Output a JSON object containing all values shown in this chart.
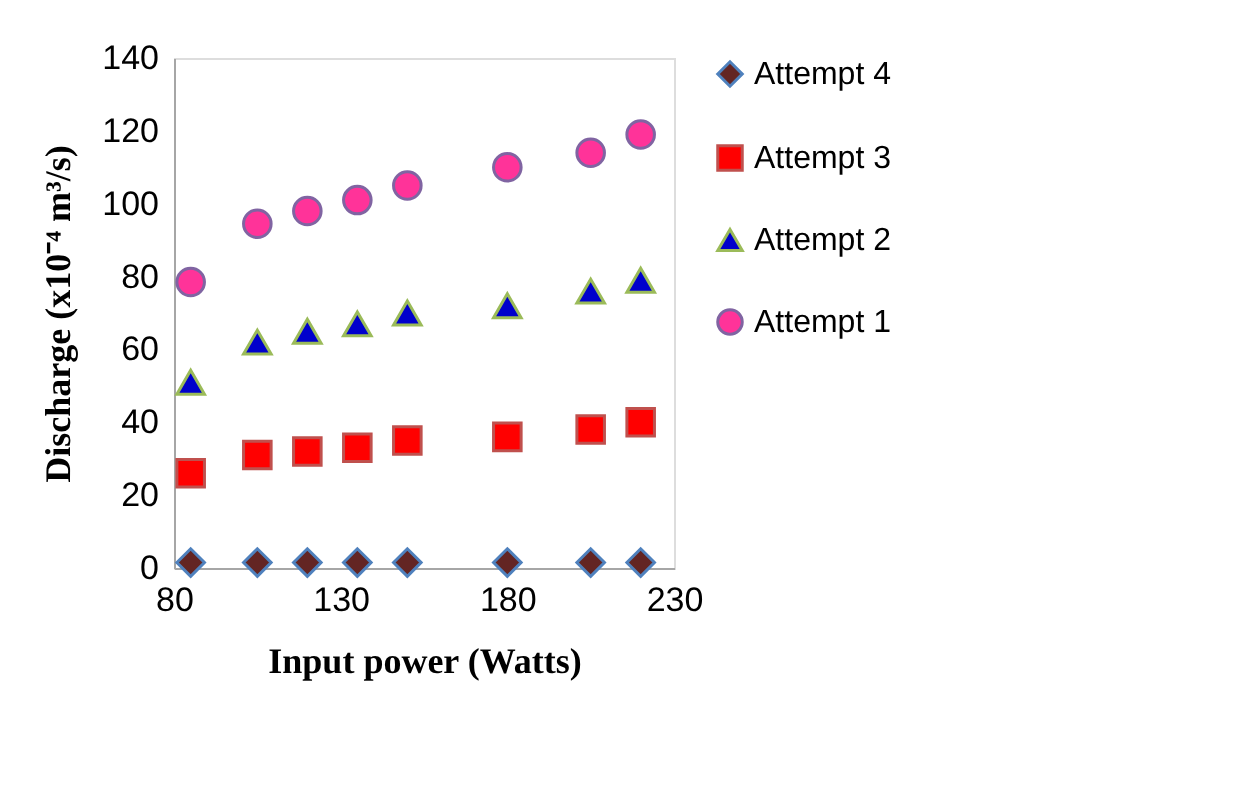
{
  "chart_data": {
    "type": "scatter",
    "xlabel": "Input power (Watts)",
    "ylabel": "Discharge (x10⁻⁴ m³/s)",
    "x": [
      85,
      105,
      120,
      135,
      150,
      180,
      205,
      220
    ],
    "series": [
      {
        "name": "Attempt 4",
        "color": "#632523",
        "marker": "diamond",
        "values": [
          1.5,
          1.5,
          1.5,
          1.5,
          1.5,
          1.5,
          1.5,
          1.5
        ]
      },
      {
        "name": "Attempt 3",
        "color": "#ff0000",
        "marker": "square",
        "values": [
          26,
          31,
          32,
          33,
          35,
          36,
          38,
          40
        ]
      },
      {
        "name": "Attempt 2",
        "color": "#0000cc",
        "marker": "triangle",
        "values": [
          51,
          62,
          65,
          67,
          70,
          72,
          76,
          79
        ]
      },
      {
        "name": "Attempt 1",
        "color": "#ff3399",
        "marker": "circle",
        "values": [
          78.5,
          94.5,
          98,
          101,
          105,
          110,
          114,
          119
        ]
      }
    ],
    "xlim": [
      80,
      230
    ],
    "xticks": [
      80,
      130,
      180,
      230
    ],
    "ylim": [
      0,
      140
    ],
    "yticks": [
      0,
      20,
      40,
      60,
      80,
      100,
      120,
      140
    ],
    "grid": false,
    "legend": "right"
  }
}
